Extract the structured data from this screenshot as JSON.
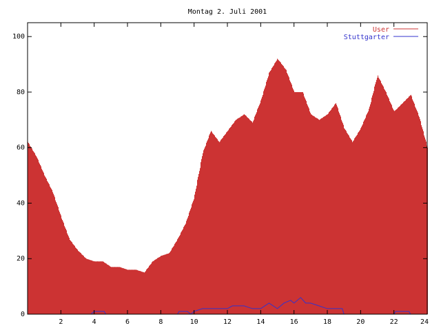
{
  "chart_data": {
    "type": "bar",
    "title": "Montag 2. Juli 2001",
    "xlabel": "",
    "ylabel": "",
    "xlim": [
      0,
      24
    ],
    "ylim": [
      0,
      105
    ],
    "x_ticks": [
      "2",
      "4",
      "6",
      "8",
      "10",
      "12",
      "14",
      "16",
      "18",
      "20",
      "22",
      "24"
    ],
    "y_ticks": [
      "0",
      "20",
      "40",
      "60",
      "80",
      "100"
    ],
    "grid": false,
    "legend_position": "top-right",
    "colors": {
      "user": "#cc3333",
      "stuttgarter": "#3333cc",
      "axis": "#000000"
    },
    "series": [
      {
        "name": "User",
        "style": "impulses",
        "color": "#cc3333",
        "points": [
          [
            0.0,
            62
          ],
          [
            0.5,
            57
          ],
          [
            1.0,
            50
          ],
          [
            1.5,
            44
          ],
          [
            2.0,
            35
          ],
          [
            2.5,
            27
          ],
          [
            3.0,
            23
          ],
          [
            3.5,
            20
          ],
          [
            4.0,
            19
          ],
          [
            4.5,
            19
          ],
          [
            5.0,
            17
          ],
          [
            5.5,
            17
          ],
          [
            6.0,
            16
          ],
          [
            6.5,
            16
          ],
          [
            7.0,
            15
          ],
          [
            7.5,
            19
          ],
          [
            8.0,
            21
          ],
          [
            8.5,
            22
          ],
          [
            9.0,
            27
          ],
          [
            9.5,
            33
          ],
          [
            10.0,
            42
          ],
          [
            10.5,
            58
          ],
          [
            11.0,
            66
          ],
          [
            11.5,
            62
          ],
          [
            12.0,
            66
          ],
          [
            12.5,
            70
          ],
          [
            13.0,
            72
          ],
          [
            13.5,
            69
          ],
          [
            14.0,
            77
          ],
          [
            14.5,
            87
          ],
          [
            15.0,
            92
          ],
          [
            15.5,
            88
          ],
          [
            16.0,
            80
          ],
          [
            16.5,
            80
          ],
          [
            17.0,
            72
          ],
          [
            17.5,
            70
          ],
          [
            18.0,
            72
          ],
          [
            18.5,
            76
          ],
          [
            19.0,
            67
          ],
          [
            19.5,
            62
          ],
          [
            20.0,
            67
          ],
          [
            20.5,
            74
          ],
          [
            21.0,
            86
          ],
          [
            21.5,
            80
          ],
          [
            22.0,
            73
          ],
          [
            22.5,
            76
          ],
          [
            23.0,
            79
          ],
          [
            23.5,
            71
          ],
          [
            24.0,
            60
          ]
        ]
      },
      {
        "name": "Stuttgarter",
        "style": "line",
        "color": "#3333cc",
        "points": [
          [
            0.0,
            0
          ],
          [
            3.8,
            0
          ],
          [
            4.0,
            1
          ],
          [
            4.6,
            1
          ],
          [
            4.7,
            0
          ],
          [
            9.0,
            0
          ],
          [
            9.1,
            1
          ],
          [
            9.6,
            1
          ],
          [
            9.8,
            0
          ],
          [
            10.0,
            1
          ],
          [
            10.5,
            2
          ],
          [
            11.0,
            2
          ],
          [
            11.5,
            2
          ],
          [
            12.0,
            2
          ],
          [
            12.3,
            3
          ],
          [
            13.0,
            3
          ],
          [
            13.5,
            2
          ],
          [
            14.0,
            2
          ],
          [
            14.5,
            4
          ],
          [
            15.0,
            2
          ],
          [
            15.4,
            4
          ],
          [
            15.8,
            5
          ],
          [
            16.0,
            4
          ],
          [
            16.4,
            6
          ],
          [
            16.7,
            4
          ],
          [
            17.0,
            4
          ],
          [
            17.5,
            3
          ],
          [
            18.0,
            2
          ],
          [
            18.5,
            2
          ],
          [
            18.9,
            2
          ],
          [
            19.0,
            0
          ],
          [
            22.0,
            0
          ],
          [
            22.1,
            1
          ],
          [
            22.9,
            1
          ],
          [
            23.0,
            0
          ],
          [
            24.0,
            0
          ]
        ]
      }
    ]
  }
}
